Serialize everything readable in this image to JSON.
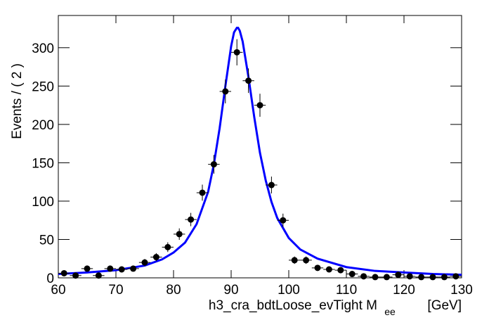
{
  "chart_data": {
    "type": "errorbar",
    "ylabel": "Events / ( 2 )",
    "xlabel": "h3_cra_bdtLoose_evTight  M",
    "xlabel_subscript": "ee",
    "xlabel_unit": "[GeV]",
    "x": [
      61,
      63,
      65,
      67,
      69,
      71,
      73,
      75,
      77,
      79,
      81,
      83,
      85,
      87,
      89,
      91,
      93,
      95,
      97,
      99,
      101,
      103,
      105,
      107,
      109,
      111,
      113,
      115,
      117,
      119,
      121,
      123,
      125,
      127,
      129
    ],
    "values": [
      6,
      3,
      12,
      3,
      12,
      11,
      12,
      20,
      27,
      40,
      57,
      76,
      111,
      148,
      243,
      294,
      257,
      225,
      121,
      75,
      23,
      23,
      13,
      11,
      10,
      5,
      2,
      1,
      1,
      4,
      2,
      1,
      1,
      1,
      2
    ],
    "errors": [
      2.4,
      1.7,
      3.5,
      1.7,
      3.5,
      3.3,
      3.5,
      4.5,
      5.2,
      6.3,
      7.5,
      8.7,
      10.5,
      12.2,
      15.6,
      17.1,
      16,
      15,
      11,
      8.7,
      4.8,
      4.8,
      3.6,
      3.3,
      3.2,
      2.2,
      1.4,
      1,
      1,
      2,
      1.4,
      1,
      1,
      1,
      1.4
    ],
    "x_errors": [
      1,
      1,
      1,
      1,
      1,
      1,
      1,
      1,
      1,
      1,
      1,
      1,
      1,
      1,
      1,
      1,
      1,
      1,
      1,
      1,
      1,
      1,
      1,
      1,
      1,
      1,
      1,
      1,
      1,
      1,
      1,
      1,
      1,
      1,
      1
    ],
    "color": "#000000",
    "fit": {
      "color": "#0000ff",
      "x": [
        60,
        65,
        70,
        75,
        78,
        80,
        82,
        84,
        86,
        87,
        88,
        89,
        90,
        90.5,
        91,
        91.2,
        91.5,
        92,
        93,
        94,
        95,
        96,
        97,
        98,
        100,
        102,
        105,
        110,
        115,
        120,
        125,
        130
      ],
      "values": [
        5,
        7,
        10,
        16,
        24,
        33,
        46,
        70,
        112,
        148,
        195,
        250,
        302,
        320,
        326,
        326,
        322,
        308,
        262,
        210,
        163,
        127,
        99,
        78,
        52,
        37,
        25,
        14,
        9,
        7,
        5,
        4
      ]
    },
    "xlim": [
      60,
      130
    ],
    "ylim": [
      0,
      342
    ],
    "xticks": [
      60,
      70,
      80,
      90,
      100,
      110,
      120,
      130
    ],
    "yticks": [
      0,
      50,
      100,
      150,
      200,
      250,
      300
    ]
  }
}
